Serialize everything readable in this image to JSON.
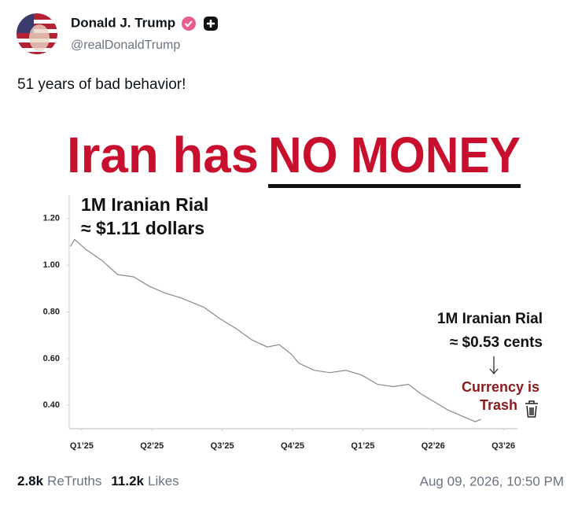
{
  "post": {
    "author": "Donald J. Trump",
    "handle": "@realDonaldTrump",
    "text": "51 years of bad behavior!",
    "stats": [
      {
        "count": "2.8k",
        "label": "ReTruths"
      },
      {
        "count": "11.2k",
        "label": "Likes"
      }
    ],
    "timestamp": "Aug 09, 2026, 10:50 PM"
  },
  "chart_data": {
    "type": "line",
    "title": "Iran has",
    "title_highlight": "NO MONEY",
    "annotations": [
      "1M Iranian Rial",
      "≈ $1.11 dollars",
      "1M Iranian Rial",
      "≈ $0.53 cents",
      "Currency is",
      "Trash"
    ],
    "x": [
      -0.16,
      -0.1,
      0.07,
      0.29,
      0.51,
      0.74,
      0.96,
      1.19,
      1.41,
      1.74,
      1.97,
      2.19,
      2.42,
      2.64,
      2.81,
      2.98,
      3.09,
      3.31,
      3.53,
      3.76,
      3.98,
      4.21,
      4.43,
      4.65,
      4.82,
      4.99,
      5.21,
      5.44,
      5.6,
      5.68
    ],
    "series": [
      {
        "color": "#8a8a8a",
        "values": [
          1.08,
          1.11,
          1.065,
          1.02,
          0.96,
          0.95,
          0.91,
          0.88,
          0.86,
          0.82,
          0.77,
          0.73,
          0.68,
          0.65,
          0.66,
          0.62,
          0.58,
          0.55,
          0.54,
          0.55,
          0.53,
          0.49,
          0.48,
          0.49,
          0.45,
          0.42,
          0.38,
          0.35,
          0.33,
          0.34
        ]
      }
    ],
    "xlim": [
      -0.2,
      6.2
    ],
    "xticks": [
      {
        "value": 0,
        "label": "Q1’25"
      },
      {
        "value": 1,
        "label": "Q2’25"
      },
      {
        "value": 2,
        "label": "Q3’25"
      },
      {
        "value": 3,
        "label": "Q4’25"
      },
      {
        "value": 4,
        "label": "Q1’25"
      },
      {
        "value": 5,
        "label": "Q2’26"
      },
      {
        "value": 6,
        "label": "Q3’26"
      }
    ],
    "ylim": [
      0.3,
      1.3
    ],
    "yticks": [
      {
        "value": 0.4,
        "label": "0.40"
      },
      {
        "value": 0.6,
        "label": "0.60"
      },
      {
        "value": 0.8,
        "label": "0.80"
      },
      {
        "value": 1.0,
        "label": "1.00"
      },
      {
        "value": 1.2,
        "label": "1.20"
      }
    ],
    "grid": false
  }
}
